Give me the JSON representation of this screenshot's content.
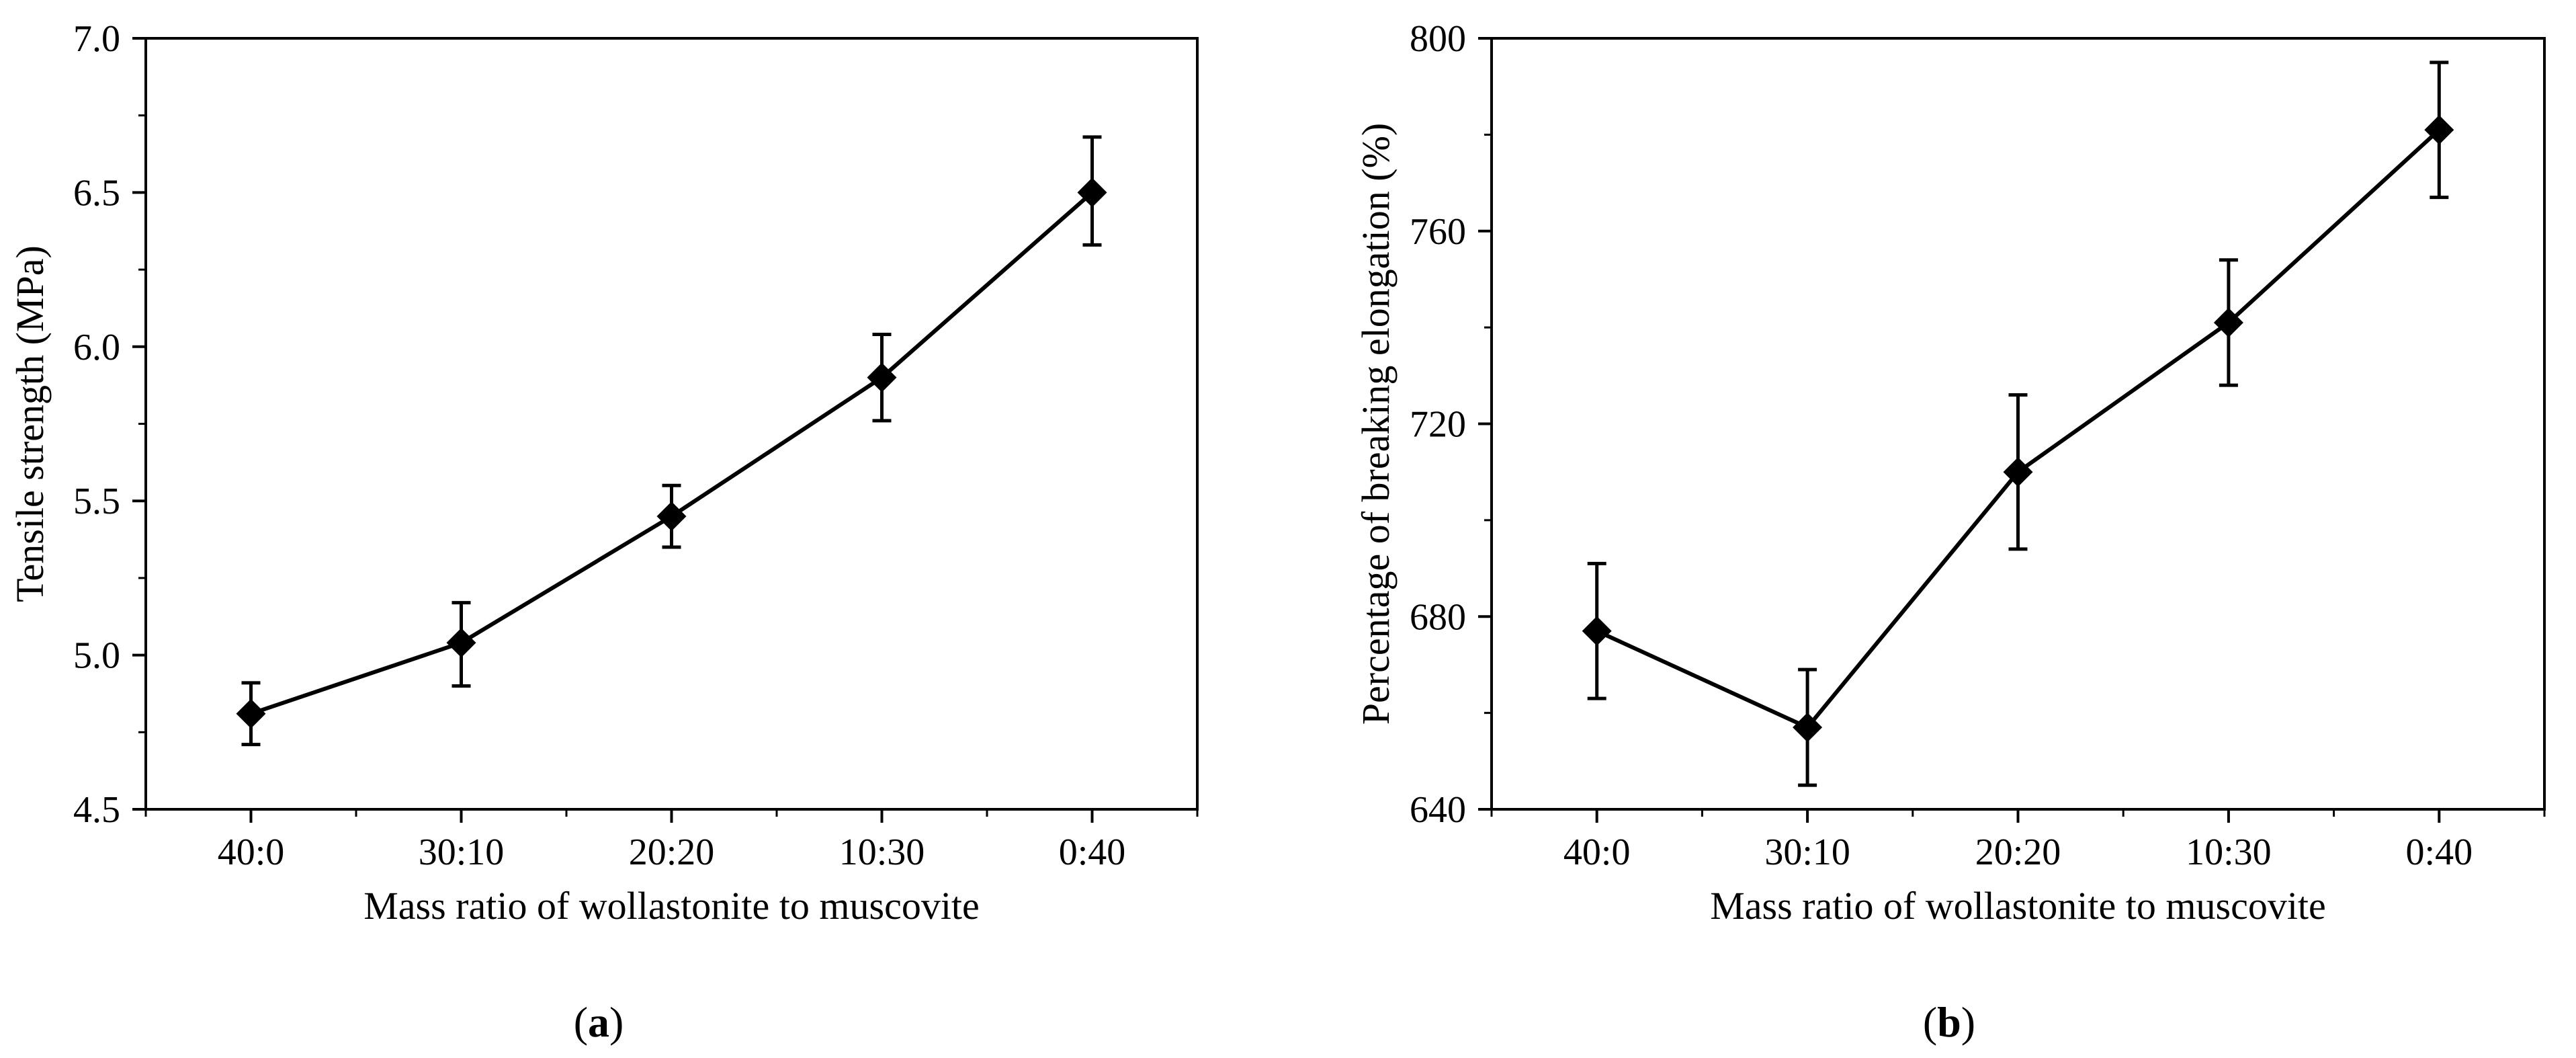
{
  "chart_data": [
    {
      "type": "line",
      "panel_label": "(a)",
      "panel_letter": "a",
      "xlabel": "Mass ratio of wollastonite to muscovite",
      "ylabel": "Tensile strength (MPa)",
      "categories": [
        "40:0",
        "30:10",
        "20:20",
        "10:30",
        "0:40"
      ],
      "values": [
        4.81,
        5.04,
        5.45,
        5.9,
        6.5
      ],
      "error_low": [
        4.71,
        4.9,
        5.35,
        5.76,
        6.33
      ],
      "error_high": [
        4.91,
        5.17,
        5.55,
        6.04,
        6.68
      ],
      "ylim": [
        4.5,
        7.0
      ],
      "yticks": [
        4.5,
        5.0,
        5.5,
        6.0,
        6.5,
        7.0
      ],
      "ytick_labels": [
        "4.5",
        "5.0",
        "5.5",
        "6.0",
        "6.5",
        "7.0"
      ],
      "marker": "diamond",
      "color": "#000000"
    },
    {
      "type": "line",
      "panel_label": "(b)",
      "panel_letter": "b",
      "xlabel": "Mass ratio of wollastonite to muscovite",
      "ylabel": "Percentage of breaking elongation (%)",
      "categories": [
        "40:0",
        "30:10",
        "20:20",
        "10:30",
        "0:40"
      ],
      "values": [
        677,
        657,
        710,
        741,
        781
      ],
      "error_low": [
        663,
        645,
        694,
        728,
        767
      ],
      "error_high": [
        691,
        669,
        726,
        754,
        795
      ],
      "ylim": [
        640,
        800
      ],
      "yticks": [
        640,
        680,
        720,
        760,
        800
      ],
      "ytick_labels": [
        "640",
        "680",
        "720",
        "760",
        "800"
      ],
      "marker": "diamond",
      "color": "#000000"
    }
  ]
}
